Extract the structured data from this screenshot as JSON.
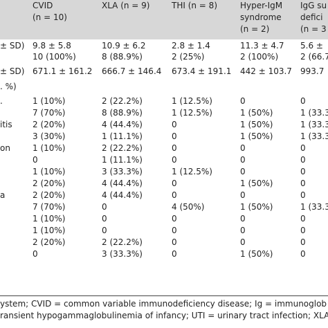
{
  "header": {
    "columns": [
      {
        "line1": "CVID",
        "line2": "(n = 10)"
      },
      {
        "line1": "XLA (n = 9)",
        "line2": ""
      },
      {
        "line1": "THI (n = 8)",
        "line2": ""
      },
      {
        "line1": "Hyper-IgM",
        "line2": "syndrome",
        "line3": "(n = 2)"
      },
      {
        "line1": "IgG su",
        "line2": "defici",
        "line3": "(n = 3"
      }
    ]
  },
  "rows": [
    {
      "label": "± SD)",
      "vals": [
        "9.8 ± 5.8",
        "10.9 ± 6.2",
        "2.8 ± 1.4",
        "11.3 ± 4.7",
        "5.6 ±"
      ]
    },
    {
      "label": "",
      "vals": [
        "10 (100%)",
        "8 (88.9%)",
        "2 (25%)",
        "2 (100%)",
        "2 (66.7"
      ]
    },
    {
      "label": "± SD)",
      "vals": [
        "671.1 ± 161.2",
        "666.7 ± 146.4",
        "673.4 ± 191.1",
        "442 ± 103.7",
        "993.7"
      ]
    },
    {
      "label": ". %)",
      "vals": [
        "",
        "",
        "",
        "",
        ""
      ]
    },
    {
      "label": ".",
      "vals": [
        "1 (10%)",
        "2 (22.2%)",
        "1 (12.5%)",
        "0",
        "0"
      ]
    },
    {
      "label": "",
      "vals": [
        "7 (70%)",
        "8 (88.9%)",
        "1 (12.5%)",
        "1 (50%)",
        "1 (33.3"
      ]
    },
    {
      "label": "itis",
      "vals": [
        "2 (20%)",
        "4 (44.4%)",
        "0",
        "1 (50%)",
        "1 (33.3"
      ]
    },
    {
      "label": "",
      "vals": [
        "3 (30%)",
        "1 (11.1%)",
        "0",
        "1 (50%)",
        "1 (33.3"
      ]
    },
    {
      "label": "on",
      "vals": [
        "1 (10%)",
        "2 (22.2%)",
        "0",
        "0",
        "0"
      ]
    },
    {
      "label": "",
      "vals": [
        "0",
        "1 (11.1%)",
        "0",
        "0",
        "0"
      ]
    },
    {
      "label": "",
      "vals": [
        "1 (10%)",
        "3 (33.3%)",
        "1 (12.5%)",
        "0",
        "0"
      ]
    },
    {
      "label": "",
      "vals": [
        "2 (20%)",
        "4 (44.4%)",
        "0",
        "1 (50%)",
        "0"
      ]
    },
    {
      "label": "a",
      "vals": [
        "2 (20%)",
        "4 (44.4%)",
        "0",
        "0",
        "0"
      ]
    },
    {
      "label": "",
      "vals": [
        "7 (70%)",
        "0",
        "4 (50%)",
        "1 (50%)",
        "1 (33.3"
      ]
    },
    {
      "label": "",
      "vals": [
        "1 (10%)",
        "0",
        "0",
        "0",
        "0"
      ]
    },
    {
      "label": "",
      "vals": [
        "1 (10%)",
        "0",
        "0",
        "0",
        "0"
      ]
    },
    {
      "label": "",
      "vals": [
        "2 (20%)",
        "2 (22.2%)",
        "0",
        "0",
        "0"
      ]
    },
    {
      "label": "",
      "vals": [
        "0",
        "3 (33.3%)",
        "0",
        "1 (50%)",
        "0"
      ]
    }
  ],
  "footnote": {
    "line1": "ystem; CVID = common variable immunodeficiency disease; Ig = immunoglob",
    "line2": "ransient hypogammaglobulinemia of infancy; UTI = urinary tract infection; XLA ("
  }
}
